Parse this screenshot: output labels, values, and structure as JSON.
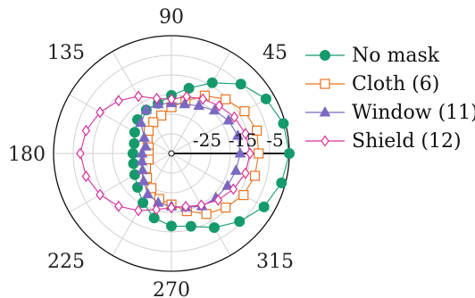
{
  "chart_data": {
    "type": "polar-line",
    "angular_ticks": [
      "90",
      "45",
      "135",
      "180",
      "225",
      "270",
      "315"
    ],
    "radial_ticks": [
      "-25",
      "-15",
      "-5"
    ],
    "radial_range": [
      -35,
      -5
    ],
    "rings": [
      -30,
      -25,
      -20,
      -15,
      -10,
      -5
    ],
    "angles_deg": [
      0,
      15,
      30,
      45,
      60,
      75,
      90,
      105,
      120,
      135,
      150,
      165,
      180,
      195,
      210,
      225,
      240,
      255,
      270,
      285,
      300,
      315,
      330,
      345
    ],
    "series": [
      {
        "name": "No mask",
        "color": "#159a6b",
        "marker": "circle-filled",
        "values": [
          -5.0,
          -5.5,
          -7.2,
          -10.0,
          -14.2,
          -17.8,
          -20.2,
          -21.8,
          -22.2,
          -22.8,
          -24.2,
          -25.2,
          -25.2,
          -25.0,
          -24.2,
          -22.8,
          -20.5,
          -18.0,
          -16.5,
          -15.8,
          -13.2,
          -10.5,
          -7.8,
          -6.0
        ]
      },
      {
        "name": "Cloth (6)",
        "color": "#e8731e",
        "marker": "square-open",
        "values": [
          -12.8,
          -12.5,
          -13.5,
          -15.5,
          -18.0,
          -21.2,
          -23.2,
          -25.0,
          -25.8,
          -26.8,
          -28.0,
          -29.0,
          -29.2,
          -29.0,
          -27.5,
          -26.2,
          -24.8,
          -23.0,
          -22.0,
          -19.8,
          -17.2,
          -15.5,
          -13.8,
          -13.0
        ]
      },
      {
        "name": "Window (11)",
        "color": "#7b68c2",
        "marker": "triangle-filled",
        "values": [
          -17.5,
          -17.5,
          -18.2,
          -19.5,
          -21.0,
          -22.0,
          -22.2,
          -22.0,
          -22.2,
          -24.0,
          -27.0,
          -28.2,
          -27.5,
          -27.2,
          -26.5,
          -25.0,
          -23.0,
          -22.0,
          -21.5,
          -20.8,
          -19.5,
          -19.0,
          -18.5,
          -18.0
        ]
      },
      {
        "name": "Shield (12)",
        "color": "#d6309a",
        "marker": "diamond-open",
        "values": [
          -15.0,
          -15.5,
          -16.5,
          -17.8,
          -19.0,
          -20.0,
          -21.2,
          -20.5,
          -18.2,
          -16.0,
          -14.0,
          -12.5,
          -11.8,
          -12.5,
          -14.0,
          -16.0,
          -18.2,
          -20.2,
          -21.2,
          -21.0,
          -19.8,
          -18.2,
          -16.8,
          -15.5
        ]
      }
    ],
    "grid": true,
    "legend_position": "right"
  }
}
